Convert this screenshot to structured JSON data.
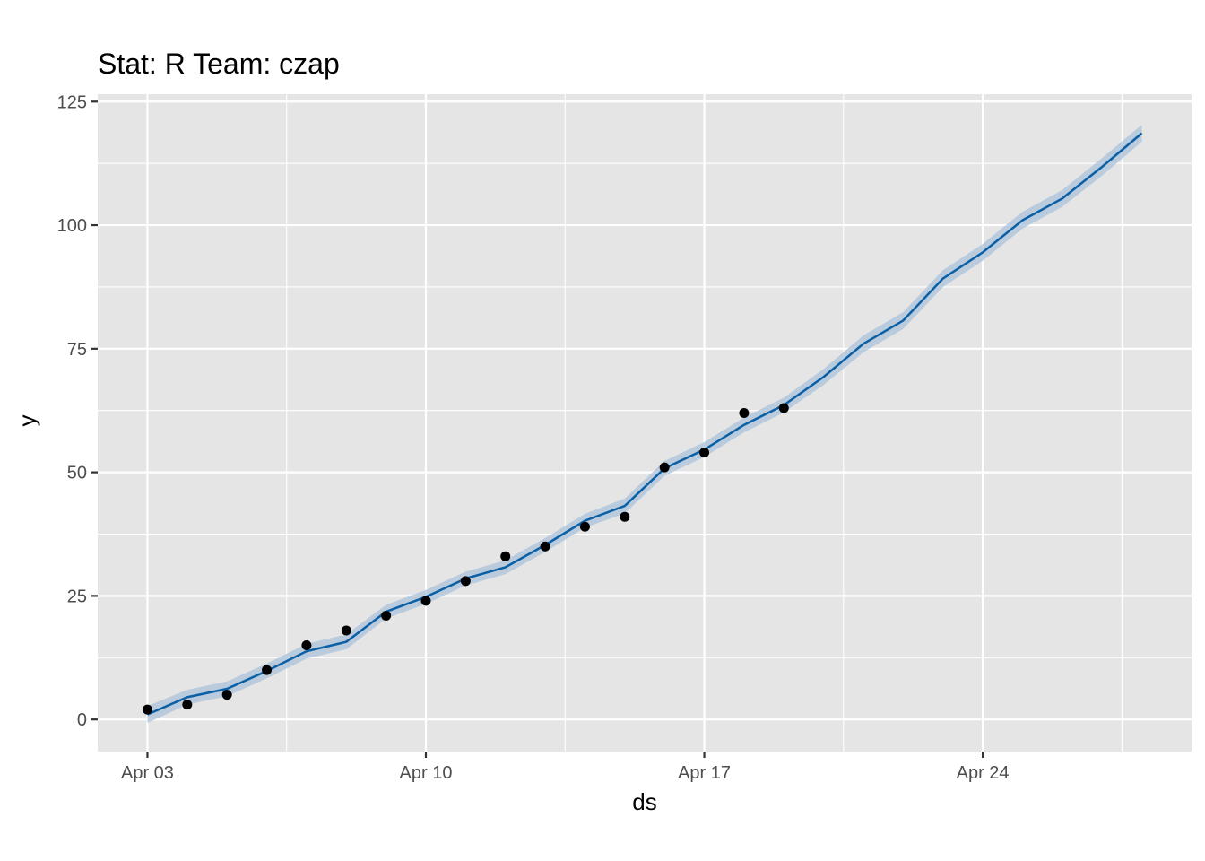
{
  "chart_data": {
    "type": "line",
    "title": "Stat: R Team: czap",
    "xlabel": "ds",
    "ylabel": "y",
    "x_tick_labels": [
      "Apr 03",
      "Apr 10",
      "Apr 17",
      "Apr 24"
    ],
    "x_tick_days": [
      3,
      10,
      17,
      24
    ],
    "y_tick_labels": [
      "0",
      "25",
      "50",
      "75",
      "100",
      "125"
    ],
    "y_tick_values": [
      0,
      25,
      50,
      75,
      100,
      125
    ],
    "xlim": [
      1.75,
      29.25
    ],
    "ylim": [
      -6.5,
      126.5
    ],
    "grid": true,
    "legend": "none",
    "colors": {
      "panel_background": "#e5e5e5",
      "grid": "#ffffff",
      "line": "#0b5fa5",
      "band": "#a9c1d9",
      "points": "#000000"
    },
    "series": [
      {
        "kind": "points",
        "x_days": [
          3,
          4,
          5,
          6,
          7,
          8,
          9,
          10,
          11,
          12,
          13,
          14,
          15,
          16,
          17,
          18,
          19
        ],
        "values": [
          2,
          3,
          5,
          10,
          15,
          18,
          21,
          24,
          28,
          33,
          35,
          39,
          41,
          51,
          54,
          62,
          63
        ]
      },
      {
        "kind": "forecast_line",
        "x_days": [
          3,
          4,
          5,
          6,
          7,
          8,
          9,
          10,
          11,
          12,
          13,
          14,
          15,
          16,
          17,
          18,
          19,
          20,
          21,
          22,
          23,
          24,
          25,
          26,
          27,
          28
        ],
        "values": [
          1,
          4.5,
          6.2,
          9.8,
          13.8,
          15.7,
          21.8,
          24.8,
          28.5,
          30.8,
          35.3,
          40.2,
          43.2,
          50.8,
          54.6,
          59.6,
          63.6,
          69.3,
          76,
          80.7,
          89.2,
          94.5,
          101,
          105.4,
          111.8,
          118.6
        ],
        "lower": [
          -0.7,
          3,
          4.7,
          8.3,
          12.3,
          14.2,
          20.4,
          23.4,
          27.1,
          29.4,
          33.9,
          38.8,
          41.7,
          49.3,
          53.1,
          58.1,
          62.1,
          67.7,
          74.3,
          79,
          87.5,
          92.8,
          99.3,
          103.7,
          110,
          116.9
        ],
        "upper": [
          2.7,
          6,
          7.7,
          11.3,
          15.3,
          17.2,
          23.2,
          26.2,
          29.9,
          32.2,
          36.7,
          41.6,
          44.7,
          52.3,
          56.1,
          61.1,
          65.1,
          70.9,
          77.7,
          82.4,
          90.9,
          96.2,
          102.7,
          107.1,
          113.6,
          120.3
        ]
      }
    ]
  }
}
